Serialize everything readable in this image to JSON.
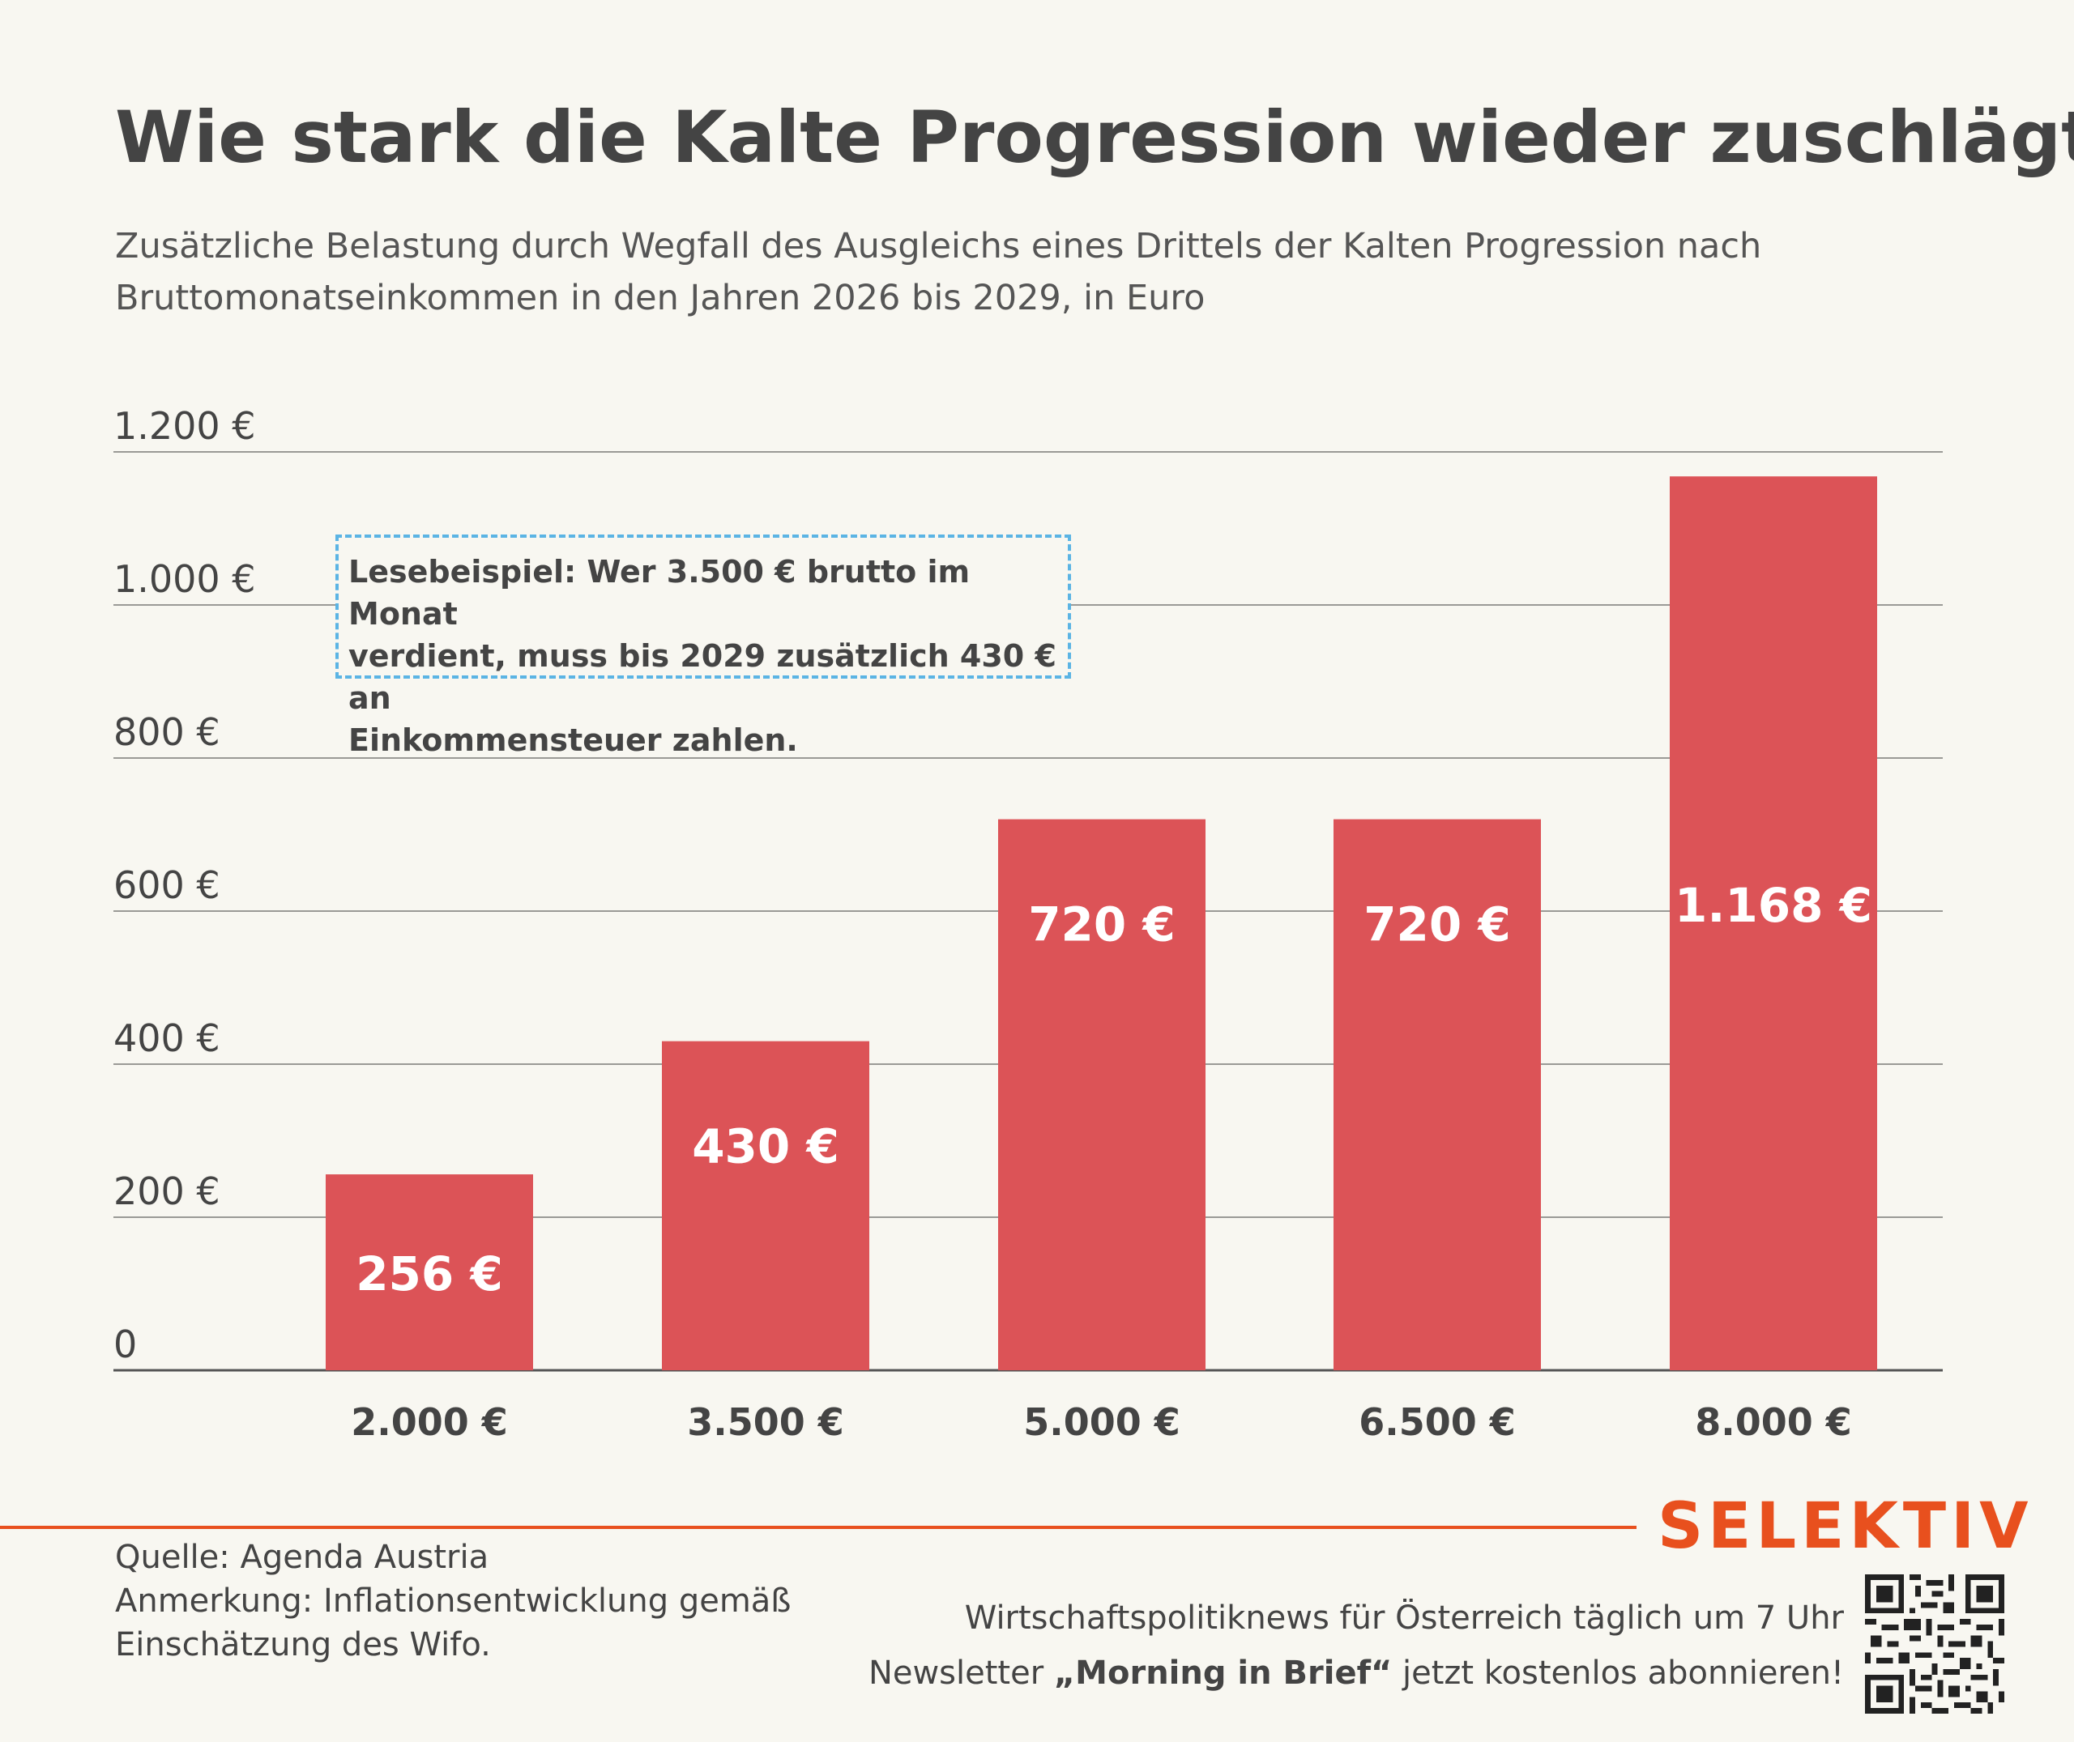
{
  "header": {
    "title": "Wie stark die Kalte Progression wieder zuschlägt",
    "subtitle_line1": "Zusätzliche Belastung durch Wegfall des Ausgleichs eines Drittels der Kalten Progression nach",
    "subtitle_line2": "Bruttomonatseinkommen in den Jahren 2026 bis 2029, in Euro"
  },
  "chart_data": {
    "type": "bar",
    "title": "Wie stark die Kalte Progression wieder zuschlägt",
    "subtitle": "Zusätzliche Belastung durch Wegfall des Ausgleichs eines Drittels der Kalten Progression nach Bruttomonatseinkommen in den Jahren 2026 bis 2029, in Euro",
    "categories": [
      "2.000 €",
      "3.500 €",
      "5.000 €",
      "6.500 €",
      "8.000 €"
    ],
    "values": [
      256,
      430,
      720,
      720,
      1168
    ],
    "value_labels": [
      "256 €",
      "430 €",
      "720 €",
      "720 €",
      "1.168 €"
    ],
    "xlabel": "",
    "ylabel": "",
    "ylim": [
      0,
      1200
    ],
    "yticks": [
      0,
      200,
      400,
      600,
      800,
      1000,
      1200
    ],
    "ytick_labels": [
      "0",
      "200 €",
      "400 €",
      "600 €",
      "800 €",
      "1.000 €",
      "1.200 €"
    ],
    "grid": true,
    "bar_color": "#dc5357",
    "annotation": "Lesebeispiel: Wer 3.500 € brutto im Monat verdient, muss bis 2029 zusätzlich 430 € an Einkommensteuer zahlen."
  },
  "annotation": {
    "line1": "Lesebeispiel: Wer 3.500 € brutto im Monat",
    "line2": "verdient, muss bis 2029 zusätzlich 430 € an",
    "line3": "Einkommensteuer zahlen."
  },
  "footer": {
    "source": "Quelle: Agenda Austria",
    "note_line1": "Anmerkung: Inflationsentwicklung gemäß",
    "note_line2": "Einschätzung des Wifo.",
    "logo": "SELEKTIV",
    "promo_line1": "Wirtschaftspolitiknews für Österreich täglich um 7 Uhr",
    "promo_prefix": "Newsletter ",
    "promo_bold": "„Morning in Brief“",
    "promo_suffix": " jetzt kostenlos abonnieren!",
    "qr_icon": "qr-code-icon"
  },
  "colors": {
    "background": "#f8f7f1",
    "bar": "#dc5357",
    "accent": "#e8501e",
    "text": "#444444",
    "annotation_border": "#5bb4e4"
  }
}
